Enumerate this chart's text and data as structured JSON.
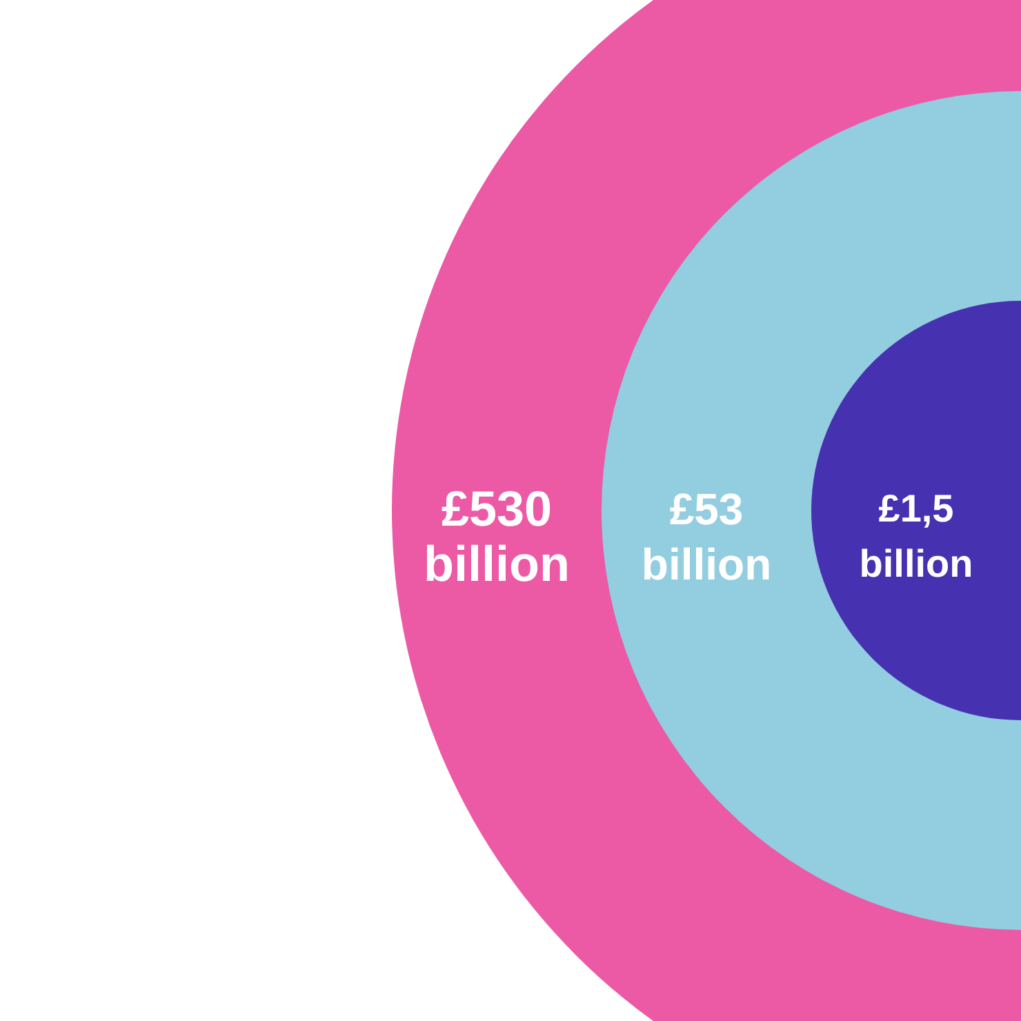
{
  "chart_data": {
    "type": "other",
    "values": [
      530,
      53,
      1.5
    ],
    "value_labels": [
      "£530 billion",
      "£53 billion",
      "£1,5 billion"
    ],
    "colors": [
      "#ec5aa6",
      "#93cde0",
      "#4631b0"
    ]
  }
}
